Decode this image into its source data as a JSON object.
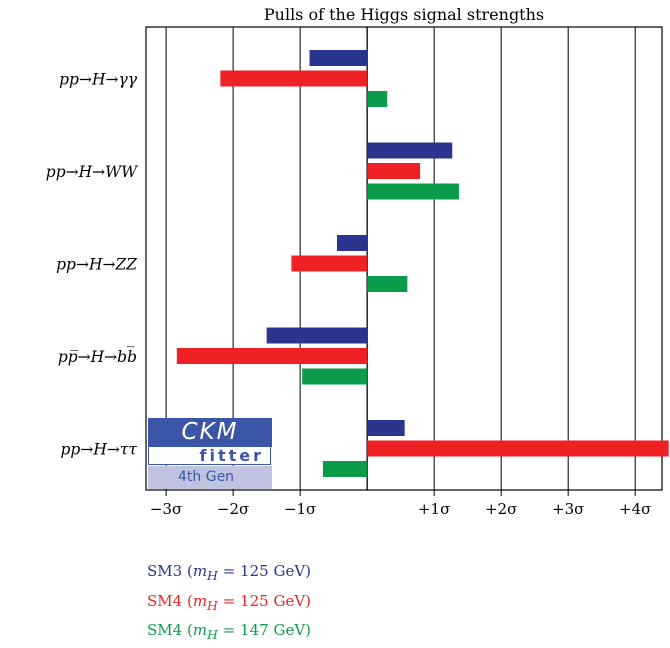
{
  "chart_data": {
    "type": "bar",
    "orientation": "horizontal",
    "title": "Pulls of the Higgs signal strengths",
    "categories": [
      "pp→H→γγ",
      "pp→H→WW",
      "pp→H→ZZ",
      "pp̅→H→bb̅",
      "pp→H→ττ"
    ],
    "xlim": [
      -3.3,
      4.4
    ],
    "xticks": [
      -3,
      -2,
      -1,
      1,
      2,
      3,
      4
    ],
    "xtick_labels": [
      "−3σ",
      "−2σ",
      "−1σ",
      "+1σ",
      "+2σ",
      "+3σ",
      "+4σ"
    ],
    "grid": true,
    "series": [
      {
        "name": "SM3 (m_H = 125 GeV)",
        "color": "#2b3590",
        "values": [
          -0.86,
          1.27,
          -0.45,
          -1.5,
          0.56
        ]
      },
      {
        "name": "SM4 (m_H = 125 GeV)",
        "color": "#ee2224",
        "values": [
          -2.19,
          0.79,
          -1.13,
          -2.84,
          4.5
        ]
      },
      {
        "name": "SM4 (m_H = 147 GeV)",
        "color": "#0b9b4a",
        "values": [
          0.3,
          1.37,
          0.6,
          -0.97,
          -0.66
        ]
      }
    ],
    "legend_position": "bottom-left",
    "legend": [
      {
        "prefix": "SM3 (",
        "var": "m",
        "sub": "H",
        "suffix": " = 125 GeV)",
        "color": "#2b3590"
      },
      {
        "prefix": "SM4 (",
        "var": "m",
        "sub": "H",
        "suffix": " = 125 GeV)",
        "color": "#ee2224"
      },
      {
        "prefix": "SM4 (",
        "var": "m",
        "sub": "H",
        "suffix": " = 147 GeV)",
        "color": "#0b9b4a"
      }
    ]
  },
  "logo": {
    "line1": "CKM",
    "line2": "fitter",
    "line3": "4th Gen"
  }
}
